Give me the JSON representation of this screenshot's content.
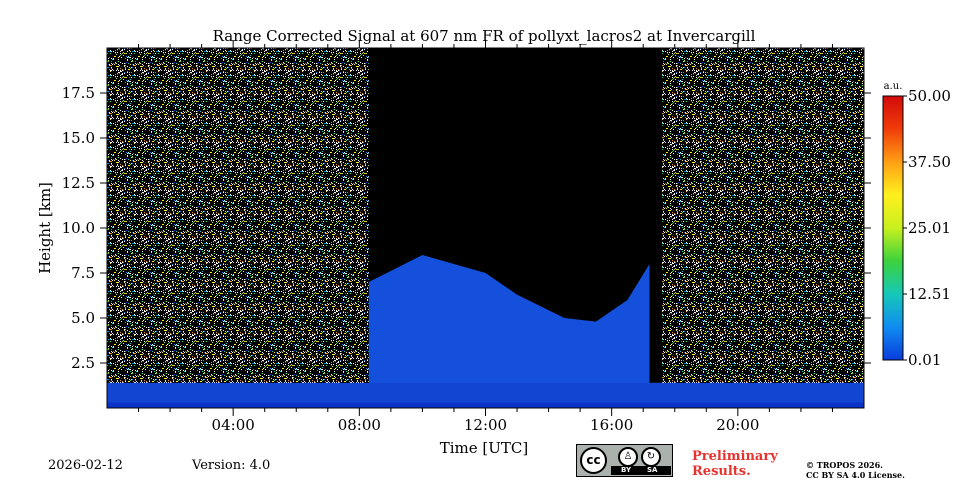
{
  "chart_data": {
    "type": "heatmap",
    "title": "Range Corrected Signal at 607 nm FR of pollyxt_lacros2 at Invercargill",
    "xlabel": "Time [UTC]",
    "ylabel": "Height [km]",
    "xlim": [
      0,
      24
    ],
    "ylim": [
      0,
      20
    ],
    "xticks": [
      {
        "value": 4,
        "label": "04:00"
      },
      {
        "value": 8,
        "label": "08:00"
      },
      {
        "value": 12,
        "label": "12:00"
      },
      {
        "value": 16,
        "label": "16:00"
      },
      {
        "value": 20,
        "label": "20:00"
      }
    ],
    "yticks": [
      {
        "value": 2.5,
        "label": "2.5"
      },
      {
        "value": 5.0,
        "label": "5.0"
      },
      {
        "value": 7.5,
        "label": "7.5"
      },
      {
        "value": 10.0,
        "label": "10.0"
      },
      {
        "value": 12.5,
        "label": "12.5"
      },
      {
        "value": 15.0,
        "label": "15.0"
      },
      {
        "value": 17.5,
        "label": "17.5"
      }
    ],
    "colorbar": {
      "unit": "a.u.",
      "min": 0.01,
      "max": 50.0,
      "ticks": [
        {
          "value": 0.01,
          "label": "0.01"
        },
        {
          "value": 12.51,
          "label": "12.51"
        },
        {
          "value": 25.01,
          "label": "25.01"
        },
        {
          "value": 37.5,
          "label": "37.50"
        },
        {
          "value": 50.0,
          "label": "50.00"
        }
      ],
      "colors": [
        "#0a3cdc",
        "#0f8cf0",
        "#16c8b8",
        "#3cd23c",
        "#c8f01e",
        "#fff01e",
        "#ffa014",
        "#f03c0a",
        "#d20a0a"
      ]
    },
    "regions": [
      {
        "name": "night-early",
        "x": [
          0,
          8.3
        ],
        "signal": "noisy-high"
      },
      {
        "name": "daytime",
        "x": [
          8.3,
          17.6
        ],
        "signal": "low-above-boundary-layer"
      },
      {
        "name": "night-late",
        "x": [
          17.6,
          24
        ],
        "signal": "noisy-high"
      }
    ],
    "boundary_layer_top_km": [
      {
        "x": 8.3,
        "y": 7.0
      },
      {
        "x": 10.0,
        "y": 8.5
      },
      {
        "x": 12.0,
        "y": 7.5
      },
      {
        "x": 13.0,
        "y": 6.3
      },
      {
        "x": 14.5,
        "y": 5.0
      },
      {
        "x": 15.5,
        "y": 4.8
      },
      {
        "x": 16.5,
        "y": 6.0
      },
      {
        "x": 17.2,
        "y": 8.0
      }
    ]
  },
  "footer": {
    "date": "2026-02-12",
    "version": "Version: 4.0",
    "preliminary_line1": "Preliminary",
    "preliminary_line2": "Results.",
    "copyright_line1": "© TROPOS 2026.",
    "copyright_line2": "CC BY SA 4.0 License.",
    "cc_badge": {
      "main": "cc",
      "by": "BY",
      "sa": "SA"
    }
  }
}
